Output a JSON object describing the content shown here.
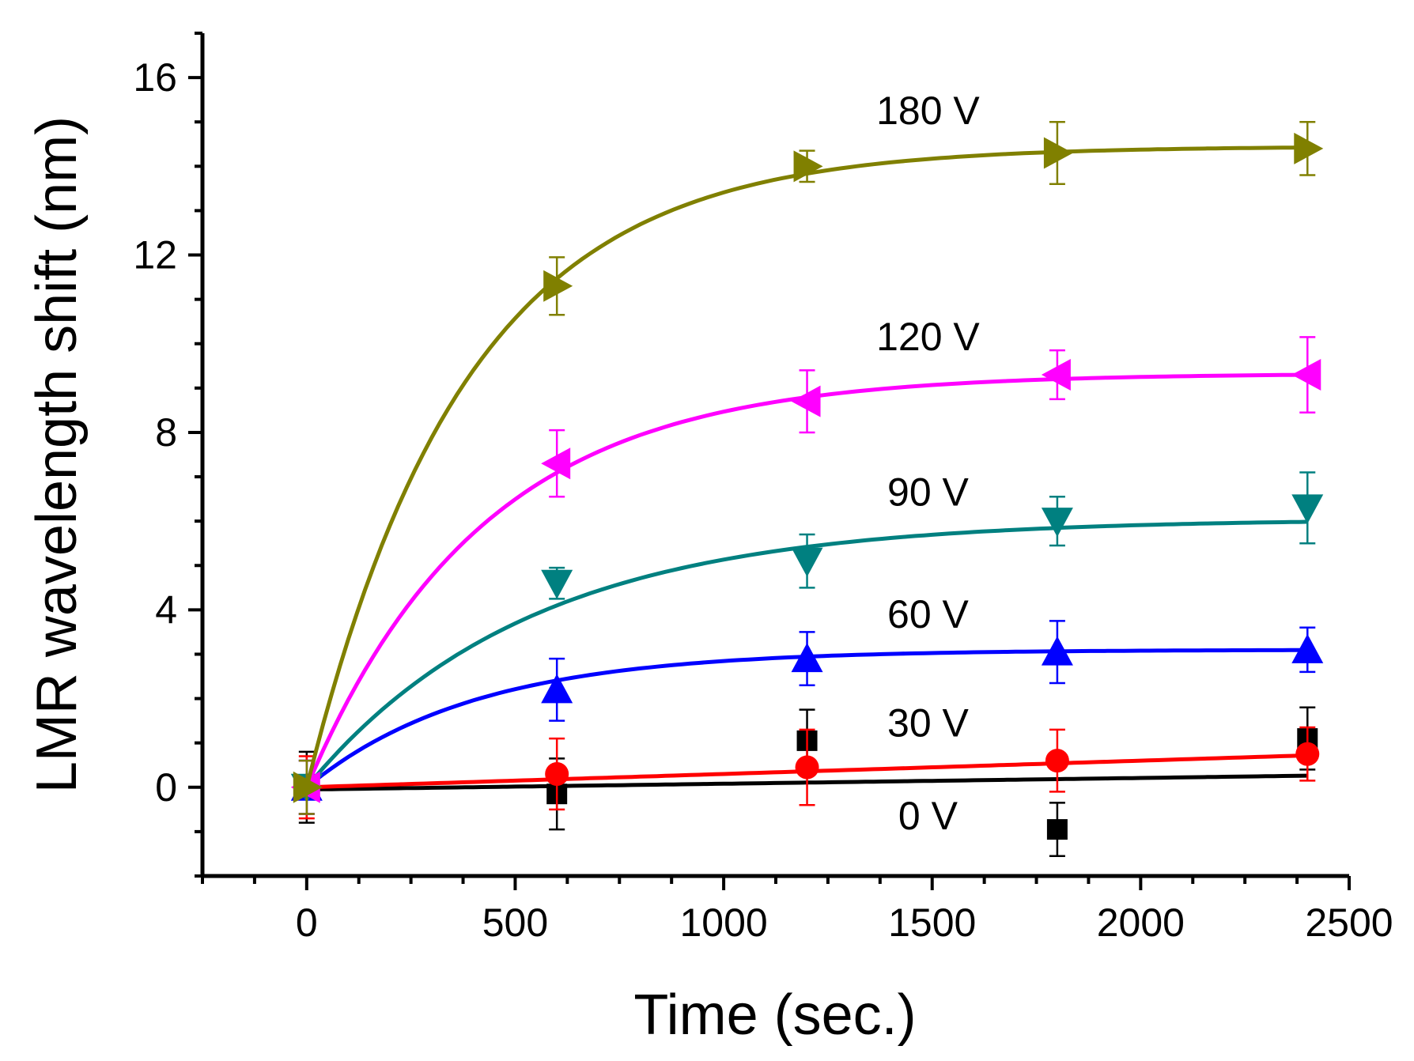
{
  "chart_data": {
    "type": "scatter",
    "title": "",
    "xlabel": "Time (sec.)",
    "ylabel": "LMR wavelength shift (nm)",
    "xlim": [
      -250,
      2500
    ],
    "ylim": [
      -2,
      17
    ],
    "xticks": [
      0,
      500,
      1000,
      1500,
      2000,
      2500
    ],
    "xtick_labels": [
      "0",
      "500",
      "1000",
      "1500",
      "2000",
      "2500"
    ],
    "yticks": [
      0,
      4,
      8,
      12,
      16
    ],
    "ytick_labels": [
      "0",
      "4",
      "8",
      "12",
      "16"
    ],
    "grid": false,
    "legend": "none (series labeled inline)",
    "series": [
      {
        "name": "0 V",
        "label": "0 V",
        "color": "#000000",
        "marker": "square",
        "x": [
          0,
          600,
          1200,
          1800,
          2400
        ],
        "y": [
          0.0,
          -0.15,
          1.05,
          -0.95,
          1.1
        ],
        "err": [
          0.8,
          0.8,
          0.7,
          0.6,
          0.7
        ],
        "fit": {
          "model": "linear",
          "y0": -0.05,
          "slope": 0.00013
        }
      },
      {
        "name": "30 V",
        "label": "30 V",
        "color": "#ff0000",
        "marker": "circle",
        "x": [
          0,
          600,
          1200,
          1800,
          2400
        ],
        "y": [
          0.0,
          0.3,
          0.45,
          0.6,
          0.75
        ],
        "err": [
          0.7,
          0.8,
          0.85,
          0.7,
          0.6
        ],
        "fit": {
          "model": "linear",
          "y0": 0.0,
          "slope": 0.0003
        }
      },
      {
        "name": "60 V",
        "label": "60 V",
        "color": "#0000ff",
        "marker": "triangle-up",
        "x": [
          0,
          600,
          1200,
          1800,
          2400
        ],
        "y": [
          0.0,
          2.2,
          2.9,
          3.05,
          3.1
        ],
        "err": [
          0.6,
          0.7,
          0.6,
          0.7,
          0.5
        ],
        "fit": {
          "model": "exp-rise",
          "A": 3.1,
          "tau": 400
        }
      },
      {
        "name": "90 V",
        "label": "90 V",
        "color": "#008080",
        "marker": "triangle-down",
        "x": [
          0,
          600,
          1200,
          1800,
          2400
        ],
        "y": [
          0.0,
          4.6,
          5.1,
          6.0,
          6.3
        ],
        "err": [
          0.6,
          0.35,
          0.6,
          0.55,
          0.8
        ],
        "fit": {
          "model": "exp-rise",
          "A": 6.05,
          "tau": 530
        }
      },
      {
        "name": "120 V",
        "label": "120 V",
        "color": "#ff00ff",
        "marker": "triangle-left",
        "x": [
          0,
          600,
          1200,
          1800,
          2400
        ],
        "y": [
          0.0,
          7.3,
          8.7,
          9.3,
          9.3
        ],
        "err": [
          0.6,
          0.75,
          0.7,
          0.55,
          0.85
        ],
        "fit": {
          "model": "exp-rise",
          "A": 9.33,
          "tau": 420
        }
      },
      {
        "name": "180 V",
        "label": "180 V",
        "color": "#808000",
        "marker": "triangle-right",
        "x": [
          0,
          600,
          1200,
          1800,
          2400
        ],
        "y": [
          0.0,
          11.3,
          14.0,
          14.3,
          14.4
        ],
        "err": [
          0.6,
          0.65,
          0.35,
          0.7,
          0.6
        ],
        "fit": {
          "model": "exp-rise",
          "A": 14.45,
          "tau": 380
        }
      }
    ],
    "annotations": [
      {
        "text": "180 V",
        "x": 1490,
        "y": 14.95
      },
      {
        "text": "120 V",
        "x": 1490,
        "y": 9.85
      },
      {
        "text": "90 V",
        "x": 1490,
        "y": 6.35
      },
      {
        "text": "60 V",
        "x": 1490,
        "y": 3.6
      },
      {
        "text": "30 V",
        "x": 1490,
        "y": 1.15
      },
      {
        "text": "0 V",
        "x": 1490,
        "y": -0.95
      }
    ]
  }
}
